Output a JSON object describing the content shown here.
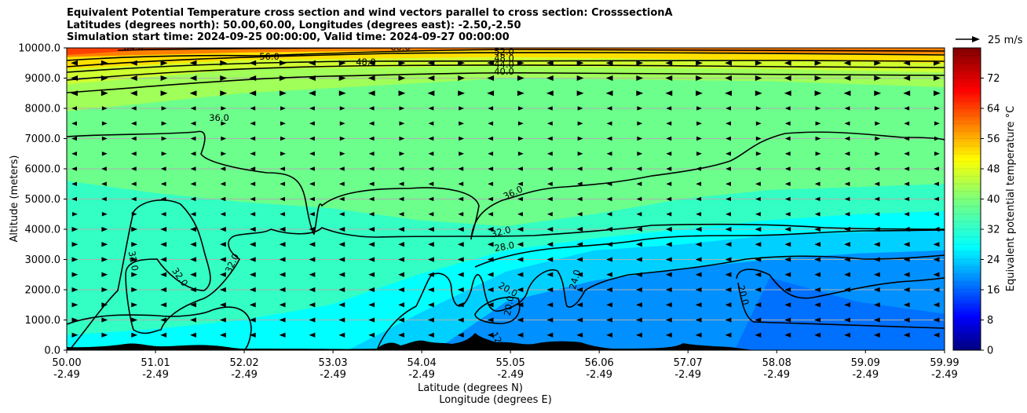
{
  "chart_data": {
    "type": "contour",
    "title_lines": [
      "Equivalent Potential Temperature cross section and wind vectors parallel to cross section: CrosssectionA",
      "Latitudes (degrees north): 50.00,60.00, Longitudes (degrees east): -2.50,-2.50",
      "Simulation start time: 2024-09-25 00:00:00, Valid time: 2024-09-27 00:00:00"
    ],
    "xlabel_lines": [
      "Latitude (degrees N)",
      "Longitude (degrees E)"
    ],
    "ylabel": "Altitude (meters)",
    "x_ticks": [
      {
        "lat": "50.00",
        "lon": "-2.49"
      },
      {
        "lat": "51.01",
        "lon": "-2.49"
      },
      {
        "lat": "52.02",
        "lon": "-2.49"
      },
      {
        "lat": "53.03",
        "lon": "-2.49"
      },
      {
        "lat": "54.04",
        "lon": "-2.49"
      },
      {
        "lat": "55.05",
        "lon": "-2.49"
      },
      {
        "lat": "56.06",
        "lon": "-2.49"
      },
      {
        "lat": "57.07",
        "lon": "-2.49"
      },
      {
        "lat": "58.08",
        "lon": "-2.49"
      },
      {
        "lat": "59.09",
        "lon": "-2.49"
      },
      {
        "lat": "59.99",
        "lon": "-2.49"
      }
    ],
    "xlim": [
      50.0,
      59.99
    ],
    "y_ticks": [
      "0.0",
      "1000.0",
      "2000.0",
      "3000.0",
      "4000.0",
      "5000.0",
      "6000.0",
      "7000.0",
      "8000.0",
      "9000.0",
      "10000.0"
    ],
    "ylim": [
      0,
      10000
    ],
    "grid": "horizontal",
    "colorbar": {
      "label": "Equivalent potential temperature °C",
      "ticks": [
        "0",
        "8",
        "16",
        "24",
        "32",
        "40",
        "48",
        "56",
        "64",
        "72"
      ],
      "range": [
        0,
        80
      ],
      "colormap": "jet"
    },
    "quiver_key": {
      "label": "25 m/s",
      "value": 25
    },
    "contour_levels": [
      20,
      24,
      28,
      32,
      36,
      40,
      44,
      48,
      52,
      56,
      60,
      64
    ],
    "contour_labels": [
      "64.0",
      "56.0",
      "60.0",
      "52.0",
      "48.0",
      "48.0",
      "44.0",
      "40.0",
      "36.0",
      "36.0",
      "32.0",
      "28.0",
      "32.0",
      "32.0",
      "32.0",
      "24.0",
      "20.0",
      "20.0",
      "20.0",
      "12"
    ],
    "fill_bands": [
      {
        "theta": 36,
        "color": "#6cff8c",
        "profile": [
          [
            50,
            7100
          ],
          [
            51,
            7100
          ],
          [
            52,
            6800
          ],
          [
            53,
            6000
          ],
          [
            54,
            5400
          ],
          [
            55,
            5200
          ],
          [
            56,
            5700
          ],
          [
            57,
            6300
          ],
          [
            58,
            6900
          ],
          [
            59,
            7400
          ],
          [
            59.99,
            7500
          ]
        ]
      },
      {
        "theta": 32,
        "color": "#33ffc4",
        "profile": [
          [
            50,
            5600
          ],
          [
            51,
            5200
          ],
          [
            52,
            4900
          ],
          [
            53,
            4700
          ],
          [
            54,
            4300
          ],
          [
            55,
            4100
          ],
          [
            56,
            4500
          ],
          [
            57,
            5000
          ],
          [
            58,
            5300
          ],
          [
            59,
            5400
          ],
          [
            59.99,
            5500
          ]
        ]
      },
      {
        "theta": 28,
        "color": "#00ffff",
        "profile": [
          [
            50,
            500
          ],
          [
            51,
            700
          ],
          [
            52,
            1000
          ],
          [
            53,
            1500
          ],
          [
            54,
            2500
          ],
          [
            55,
            3300
          ],
          [
            56,
            3700
          ],
          [
            57,
            4000
          ],
          [
            58,
            4300
          ],
          [
            59,
            4500
          ],
          [
            59.99,
            4600
          ]
        ]
      },
      {
        "theta": 24,
        "color": "#00d0ff",
        "profile": [
          [
            53.2,
            0
          ],
          [
            54,
            1200
          ],
          [
            55,
            2600
          ],
          [
            56,
            3300
          ],
          [
            57,
            3500
          ],
          [
            58,
            3800
          ],
          [
            59,
            3900
          ],
          [
            59.99,
            4000
          ]
        ]
      },
      {
        "theta": 20,
        "color": "#0090ff",
        "profile": [
          [
            54.2,
            0
          ],
          [
            55,
            1600
          ],
          [
            56,
            2300
          ],
          [
            57,
            2700
          ],
          [
            58,
            3000
          ],
          [
            59,
            3200
          ],
          [
            59.99,
            3300
          ]
        ]
      },
      {
        "theta": 16,
        "color": "#0070ff",
        "profile": [
          [
            57.6,
            0
          ],
          [
            58,
            2400
          ],
          [
            59,
            1600
          ],
          [
            59.99,
            1200
          ]
        ]
      }
    ],
    "upper_bands": [
      {
        "theta": 40,
        "color": "#a0ff58",
        "profile": [
          [
            50,
            7900
          ],
          [
            52,
            8500
          ],
          [
            55,
            9000
          ],
          [
            58,
            8900
          ],
          [
            59.99,
            8700
          ]
        ]
      },
      {
        "theta": 44,
        "color": "#d0ff30",
        "profile": [
          [
            50,
            8800
          ],
          [
            52,
            9300
          ],
          [
            55,
            9400
          ],
          [
            58,
            9300
          ],
          [
            59.99,
            9200
          ]
        ]
      },
      {
        "theta": 48,
        "color": "#ffe000",
        "profile": [
          [
            50,
            9300
          ],
          [
            52,
            9600
          ],
          [
            55,
            9700
          ],
          [
            58,
            9600
          ],
          [
            59.99,
            9500
          ]
        ]
      },
      {
        "theta": 56,
        "color": "#ff8000",
        "profile": [
          [
            50,
            9700
          ],
          [
            52,
            9850
          ],
          [
            55,
            9950
          ],
          [
            58,
            9850
          ],
          [
            59.99,
            9800
          ]
        ]
      }
    ]
  }
}
